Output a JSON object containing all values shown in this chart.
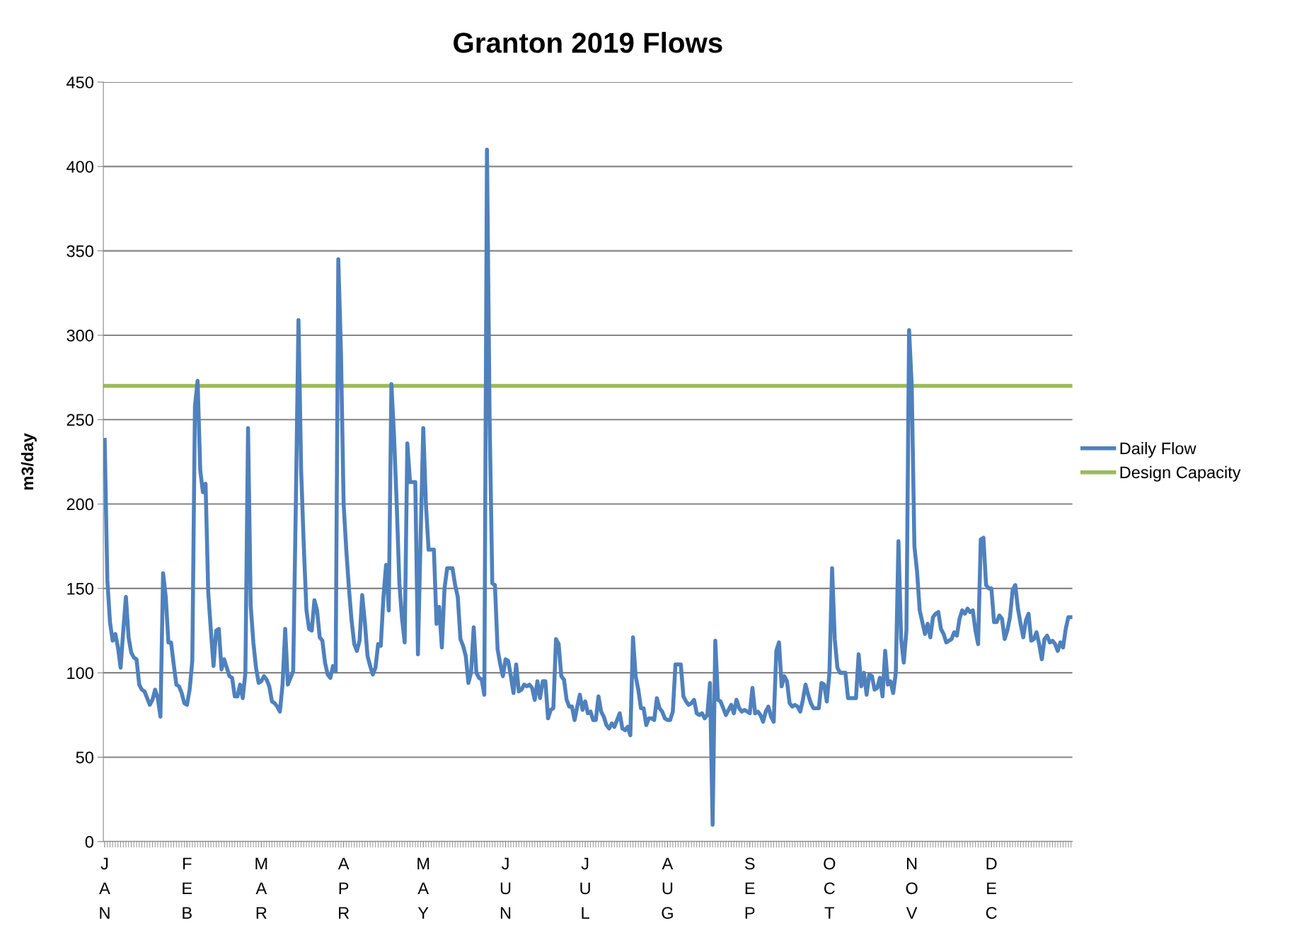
{
  "chart_data": {
    "type": "line",
    "title": "Granton 2019 Flows",
    "ylabel": "m3/day",
    "categories": [
      "J\nA\nN",
      null,
      null,
      null,
      null,
      null,
      null,
      null,
      null,
      null,
      null,
      null,
      null,
      null,
      null,
      null,
      null,
      null,
      null,
      null,
      null,
      null,
      null,
      null,
      null,
      null,
      null,
      null,
      null,
      null,
      null,
      "F\nE\nB",
      null,
      null,
      null,
      null,
      null,
      null,
      null,
      null,
      null,
      null,
      null,
      null,
      null,
      null,
      null,
      null,
      null,
      null,
      null,
      null,
      null,
      null,
      null,
      null,
      null,
      null,
      null,
      "M\nA\nR",
      null,
      null,
      null,
      null,
      null,
      null,
      null,
      null,
      null,
      null,
      null,
      null,
      null,
      null,
      null,
      null,
      null,
      null,
      null,
      null,
      null,
      null,
      null,
      null,
      null,
      null,
      null,
      null,
      null,
      null,
      "A\nP\nR",
      null,
      null,
      null,
      null,
      null,
      null,
      null,
      null,
      null,
      null,
      null,
      null,
      null,
      null,
      null,
      null,
      null,
      null,
      null,
      null,
      null,
      null,
      null,
      null,
      null,
      null,
      null,
      null,
      null,
      "M\nA\nY",
      null,
      null,
      null,
      null,
      null,
      null,
      null,
      null,
      null,
      null,
      null,
      null,
      null,
      null,
      null,
      null,
      null,
      null,
      null,
      null,
      null,
      null,
      null,
      null,
      null,
      null,
      null,
      null,
      null,
      null,
      "J\nU\nN",
      null,
      null,
      null,
      null,
      null,
      null,
      null,
      null,
      null,
      null,
      null,
      null,
      null,
      null,
      null,
      null,
      null,
      null,
      null,
      null,
      null,
      null,
      null,
      null,
      null,
      null,
      null,
      null,
      null,
      "J\nU\nL",
      null,
      null,
      null,
      null,
      null,
      null,
      null,
      null,
      null,
      null,
      null,
      null,
      null,
      null,
      null,
      null,
      null,
      null,
      null,
      null,
      null,
      null,
      null,
      null,
      null,
      null,
      null,
      null,
      null,
      null,
      "A\nU\nG",
      null,
      null,
      null,
      null,
      null,
      null,
      null,
      null,
      null,
      null,
      null,
      null,
      null,
      null,
      null,
      null,
      null,
      null,
      null,
      null,
      null,
      null,
      null,
      null,
      null,
      null,
      null,
      null,
      null,
      null,
      "S\nE\nP",
      null,
      null,
      null,
      null,
      null,
      null,
      null,
      null,
      null,
      null,
      null,
      null,
      null,
      null,
      null,
      null,
      null,
      null,
      null,
      null,
      null,
      null,
      null,
      null,
      null,
      null,
      null,
      null,
      null,
      "O\nC\nT",
      null,
      null,
      null,
      null,
      null,
      null,
      null,
      null,
      null,
      null,
      null,
      null,
      null,
      null,
      null,
      null,
      null,
      null,
      null,
      null,
      null,
      null,
      null,
      null,
      null,
      null,
      null,
      null,
      null,
      null,
      "N\nO\nV",
      null,
      null,
      null,
      null,
      null,
      null,
      null,
      null,
      null,
      null,
      null,
      null,
      null,
      null,
      null,
      null,
      null,
      null,
      null,
      null,
      null,
      null,
      null,
      null,
      null,
      null,
      null,
      null,
      null,
      "D\nE\nC",
      null,
      null,
      null,
      null,
      null,
      null,
      null,
      null,
      null,
      null,
      null,
      null,
      null,
      null,
      null,
      null,
      null,
      null,
      null,
      null,
      null,
      null,
      null,
      null,
      null,
      null,
      null,
      null,
      null,
      null
    ],
    "ylim": [
      0,
      450
    ],
    "yticks": [
      0,
      50,
      100,
      150,
      200,
      250,
      300,
      350,
      400,
      450
    ],
    "grid": "y",
    "legend": "right",
    "marker": "none",
    "line_style": "solid",
    "ref_lines": [
      {
        "axis": "y",
        "value": 270,
        "label": "Design Capacity",
        "color": "#9bbb59"
      }
    ],
    "series": [
      {
        "name": "Daily Flow",
        "color": "#4f81bd",
        "values": [
          238,
          155,
          130,
          119,
          123,
          115,
          103,
          125,
          145,
          121,
          112,
          109,
          108,
          93,
          90,
          89,
          85,
          81,
          84,
          90,
          85,
          74,
          159,
          145,
          118,
          118,
          105,
          93,
          92,
          88,
          82,
          81,
          90,
          107,
          258,
          273,
          220,
          207,
          212,
          148,
          125,
          104,
          125,
          126,
          102,
          108,
          103,
          98,
          97,
          86,
          86,
          93,
          85,
          100,
          245,
          140,
          118,
          103,
          94,
          95,
          98,
          96,
          92,
          83,
          82,
          80,
          77,
          93,
          126,
          93,
          97,
          101,
          200,
          309,
          220,
          175,
          137,
          126,
          125,
          143,
          137,
          121,
          119,
          106,
          99,
          97,
          104,
          101,
          345,
          290,
          200,
          173,
          150,
          131,
          117,
          113,
          119,
          146,
          130,
          110,
          104,
          99,
          103,
          117,
          116,
          145,
          164,
          137,
          271,
          240,
          200,
          153,
          132,
          118,
          236,
          213,
          213,
          213,
          111,
          180,
          245,
          200,
          173,
          173,
          173,
          129,
          139,
          115,
          150,
          162,
          162,
          162,
          152,
          145,
          120,
          116,
          110,
          94,
          100,
          127,
          100,
          97,
          96,
          87,
          410,
          250,
          153,
          152,
          114,
          105,
          98,
          108,
          107,
          98,
          88,
          105,
          89,
          90,
          93,
          92,
          93,
          91,
          84,
          95,
          85,
          95,
          95,
          73,
          78,
          79,
          120,
          117,
          98,
          96,
          84,
          80,
          80,
          72,
          80,
          87,
          78,
          83,
          76,
          77,
          72,
          72,
          86,
          77,
          74,
          69,
          67,
          70,
          68,
          72,
          76,
          67,
          66,
          68,
          63,
          121,
          98,
          90,
          79,
          79,
          69,
          73,
          73,
          72,
          85,
          79,
          77,
          73,
          72,
          72,
          77,
          105,
          105,
          105,
          86,
          83,
          81,
          82,
          84,
          76,
          75,
          76,
          73,
          75,
          94,
          10,
          119,
          84,
          83,
          79,
          75,
          78,
          81,
          76,
          84,
          79,
          77,
          78,
          77,
          76,
          91,
          76,
          77,
          75,
          71,
          77,
          80,
          74,
          71,
          113,
          118,
          92,
          98,
          95,
          82,
          80,
          81,
          80,
          77,
          84,
          93,
          87,
          82,
          79,
          79,
          79,
          94,
          93,
          83,
          100,
          162,
          120,
          103,
          100,
          100,
          100,
          85,
          85,
          85,
          85,
          111,
          92,
          100,
          87,
          99,
          98,
          90,
          91,
          97,
          86,
          113,
          93,
          95,
          88,
          100,
          178,
          120,
          106,
          125,
          303,
          270,
          175,
          160,
          137,
          130,
          123,
          129,
          121,
          133,
          135,
          136,
          126,
          123,
          118,
          119,
          120,
          124,
          122,
          132,
          137,
          135,
          138,
          136,
          137,
          125,
          117,
          179,
          180,
          152,
          150,
          150,
          130,
          130,
          134,
          132,
          120,
          125,
          133,
          149,
          152,
          138,
          129,
          121,
          131,
          135,
          119,
          120,
          124,
          117,
          108,
          120,
          122,
          118,
          119,
          117,
          113,
          118,
          115,
          126,
          133,
          133
        ]
      }
    ]
  }
}
